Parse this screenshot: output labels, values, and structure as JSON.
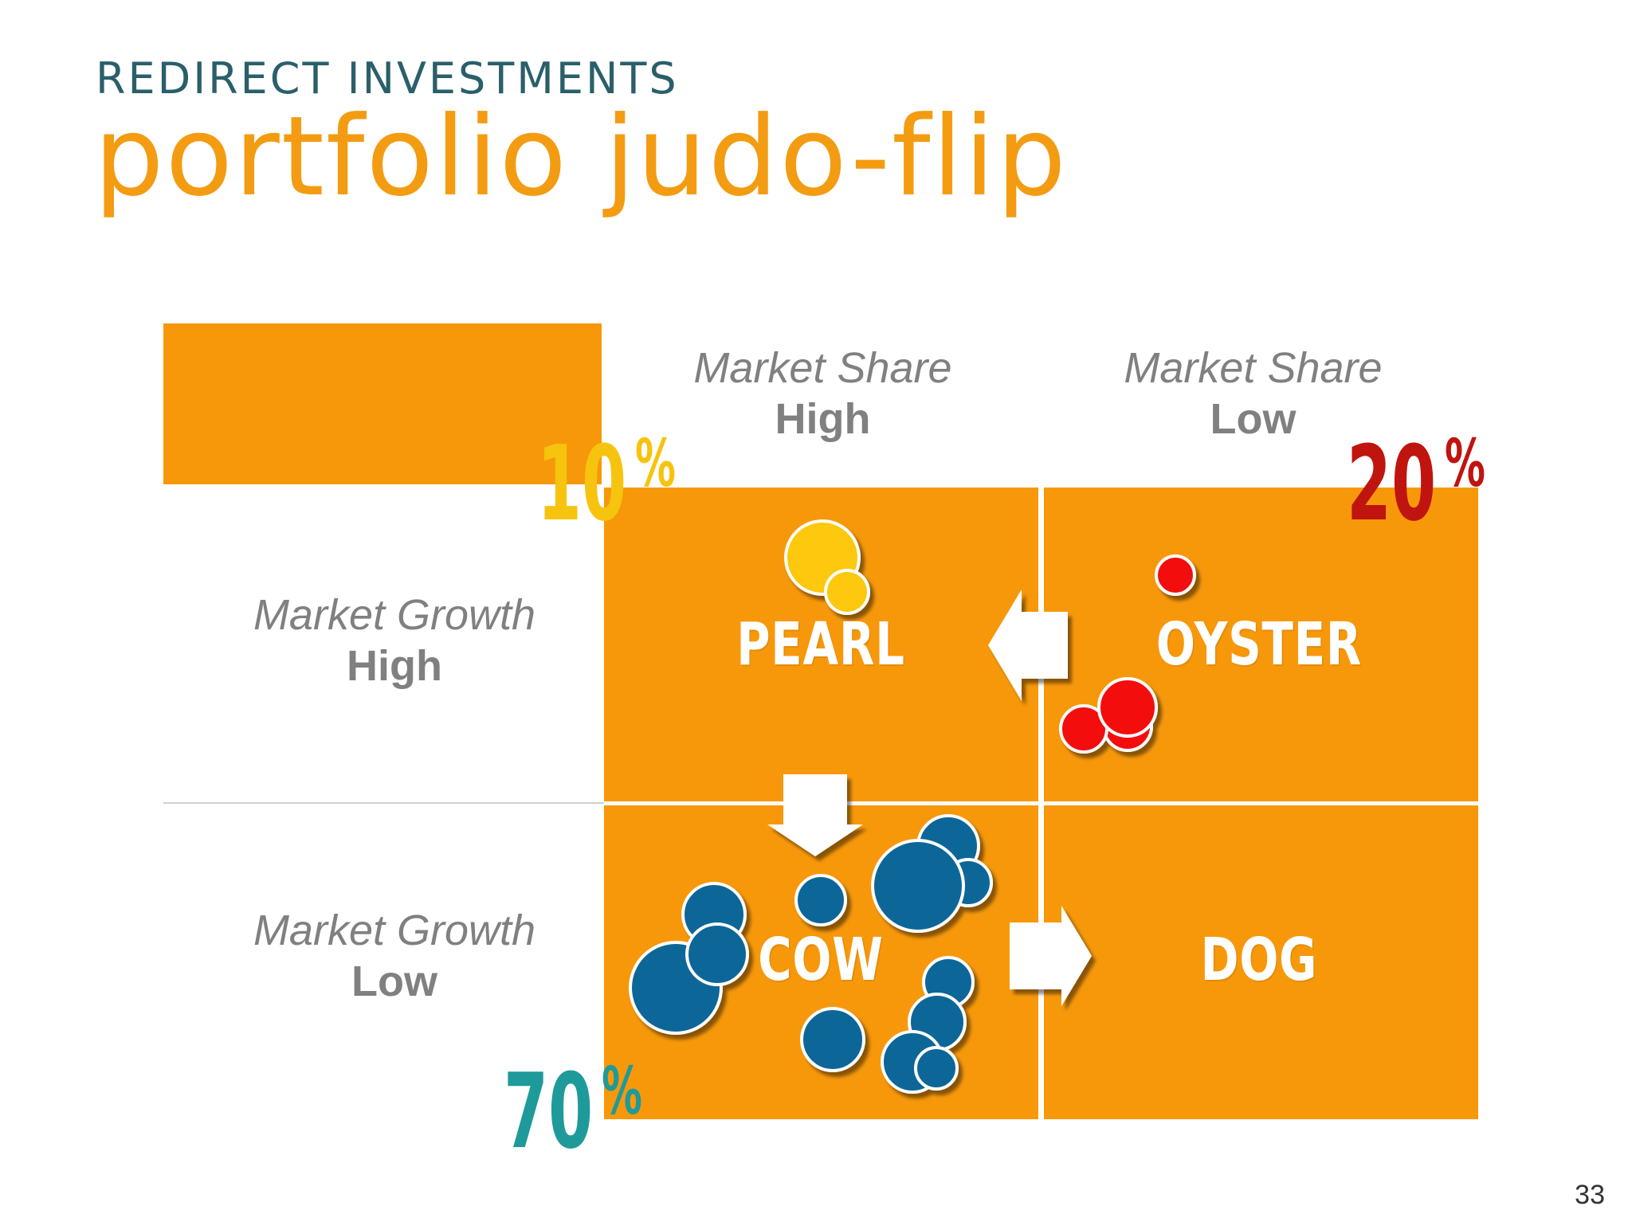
{
  "header": {
    "kicker": "REDIRECT INVESTMENTS",
    "title": "portfolio judo-flip"
  },
  "columns": [
    {
      "metric": "Market Share",
      "level": "High"
    },
    {
      "metric": "Market Share",
      "level": "Low"
    }
  ],
  "rows": [
    {
      "metric": "Market Growth",
      "level": "High"
    },
    {
      "metric": "Market Growth",
      "level": "Low"
    }
  ],
  "quadrants": {
    "pearl": "PEARL",
    "oyster": "OYSTER",
    "cow": "COW",
    "dog": "DOG"
  },
  "percentages": {
    "pearl": {
      "value": "10",
      "symbol": "%",
      "color": "#f6c40e"
    },
    "oyster": {
      "value": "20",
      "symbol": "%",
      "color": "#c0140f"
    },
    "cow": {
      "value": "70",
      "symbol": "%",
      "color": "#1f9a9a"
    }
  },
  "colors": {
    "quadrant": "#f7980b",
    "pearl_bubble": "#fdc80b",
    "oyster_bubble": "#f30d0d",
    "cow_bubble": "#0e6698"
  },
  "arrows": [
    {
      "from": "oyster",
      "to": "pearl"
    },
    {
      "from": "pearl",
      "to": "cow"
    },
    {
      "from": "cow",
      "to": "dog"
    }
  ],
  "page_number": "33"
}
